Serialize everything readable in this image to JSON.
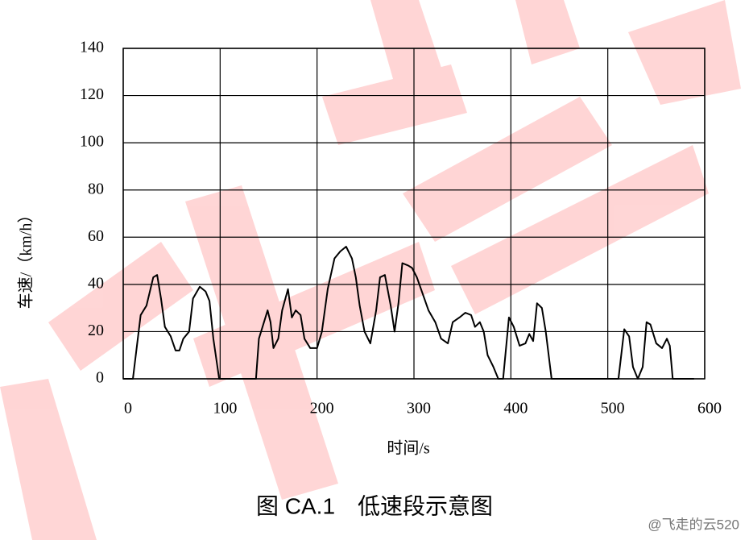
{
  "chart_data": {
    "type": "line",
    "title": "图 CA.1　低速段示意图",
    "xlabel": "时间/s",
    "ylabel": "车速/（km/h）",
    "watermark": "@飞走的云520",
    "color": "#000000",
    "grid": true,
    "x": [
      0,
      10,
      18,
      24,
      31,
      35,
      39,
      43,
      49,
      54,
      58,
      62,
      68,
      72,
      79,
      85,
      89,
      93,
      99,
      137,
      140,
      149,
      152,
      155,
      160,
      164,
      170,
      174,
      178,
      183,
      187,
      193,
      200,
      205,
      211,
      218,
      224,
      230,
      236,
      240,
      244,
      249,
      255,
      261,
      265,
      270,
      276,
      280,
      284,
      288,
      294,
      298,
      303,
      309,
      315,
      322,
      328,
      335,
      340,
      347,
      353,
      359,
      363,
      368,
      372,
      376,
      382,
      387,
      392,
      398,
      403,
      409,
      415,
      419,
      423,
      427,
      432,
      436,
      442,
      511,
      517,
      522,
      526,
      531,
      536,
      540,
      544,
      550,
      556,
      561,
      564,
      567,
      589
    ],
    "values": [
      0,
      0,
      27,
      31,
      43,
      44,
      34,
      22,
      18,
      12,
      12,
      17,
      20,
      34,
      39,
      37,
      33,
      17,
      0,
      0,
      17,
      29,
      24,
      13,
      17,
      29,
      38,
      26,
      29,
      27,
      17,
      13,
      13,
      20,
      38,
      51,
      54,
      56,
      51,
      43,
      31,
      20,
      15,
      29,
      43,
      44,
      31,
      20,
      32,
      49,
      48,
      47,
      43,
      36,
      29,
      24,
      17,
      15,
      24,
      26,
      28,
      27,
      22,
      24,
      20,
      10,
      5,
      0,
      0,
      26,
      22,
      14,
      15,
      19,
      16,
      32,
      30,
      20,
      0,
      0,
      21,
      18,
      5,
      0,
      5,
      24,
      23,
      15,
      13,
      17,
      14,
      0,
      0
    ],
    "xlim": [
      0,
      600
    ],
    "xticks": [
      0,
      100,
      200,
      300,
      400,
      500,
      600
    ],
    "ylim": [
      0,
      140
    ],
    "yticks": [
      0,
      20,
      40,
      60,
      80,
      100,
      120,
      140
    ]
  }
}
